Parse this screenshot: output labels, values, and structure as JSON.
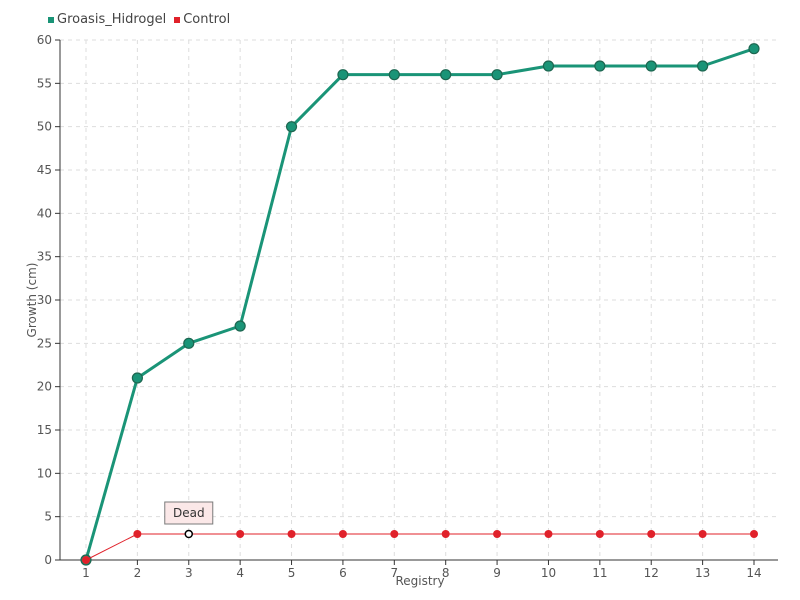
{
  "chart_data": {
    "type": "line",
    "xlabel": "Registry",
    "ylabel": "Growth (cm)",
    "x": [
      1,
      2,
      3,
      4,
      5,
      6,
      7,
      8,
      9,
      10,
      11,
      12,
      13,
      14
    ],
    "xlim": [
      1,
      14
    ],
    "ylim": [
      0,
      60
    ],
    "ytick_step": 5,
    "grid": true,
    "legend_position": "top-left",
    "series": [
      {
        "name": "Groasis_Hidrogel",
        "color": "#1a9477",
        "values": [
          0,
          21,
          25,
          27,
          50,
          56,
          56,
          56,
          56,
          57,
          57,
          57,
          57,
          59
        ]
      },
      {
        "name": "Control",
        "color": "#e0212a",
        "values": [
          0,
          3,
          3,
          3,
          3,
          3,
          3,
          3,
          3,
          3,
          3,
          3,
          3,
          3
        ]
      }
    ],
    "annotations": [
      {
        "text": "Dead",
        "series": "Control",
        "x": 3,
        "y": 3
      }
    ]
  }
}
